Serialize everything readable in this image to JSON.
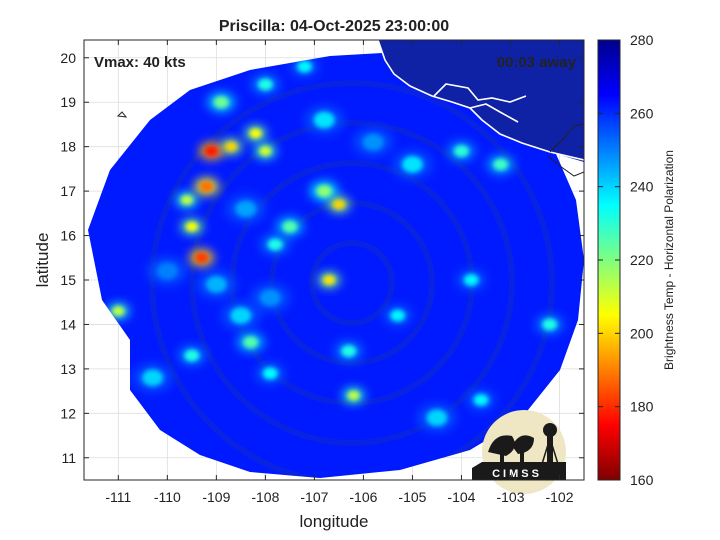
{
  "chart_data": {
    "type": "heatmap",
    "title": "Priscilla: 04-Oct-2025 23:00:00",
    "xlabel": "longitude",
    "ylabel": "latitude",
    "xlim": [
      -111.7,
      -101.5
    ],
    "ylim": [
      10.5,
      20.4
    ],
    "xticks": [
      "-111",
      "-110",
      "-109",
      "-108",
      "-107",
      "-106",
      "-105",
      "-104",
      "-103",
      "-102"
    ],
    "yticks": [
      "11",
      "12",
      "13",
      "14",
      "15",
      "16",
      "17",
      "18",
      "19",
      "20"
    ],
    "grid": true,
    "annotations": {
      "vmax": "Vmax: 40 kts",
      "away": "00:03 away"
    },
    "colorbar": {
      "label": "Brightness Temp - Horizontal Polarization",
      "range": [
        160,
        280
      ],
      "ticks": [
        "160",
        "180",
        "200",
        "220",
        "240",
        "260",
        "280"
      ],
      "colormap": "jet",
      "low_color": "#800000",
      "high_color": "#00008f"
    },
    "logo_text": "CIMSS",
    "swath_background_value": 262,
    "features": [
      {
        "lon": -109.1,
        "lat": 17.9,
        "value": 178
      },
      {
        "lon": -109.2,
        "lat": 17.1,
        "value": 188
      },
      {
        "lon": -109.3,
        "lat": 15.5,
        "value": 182
      },
      {
        "lon": -108.7,
        "lat": 18.0,
        "value": 200
      },
      {
        "lon": -108.2,
        "lat": 18.3,
        "value": 205
      },
      {
        "lon": -108.0,
        "lat": 17.9,
        "value": 210
      },
      {
        "lon": -109.5,
        "lat": 16.2,
        "value": 205
      },
      {
        "lon": -109.6,
        "lat": 16.8,
        "value": 212
      },
      {
        "lon": -108.9,
        "lat": 19.0,
        "value": 222
      },
      {
        "lon": -106.7,
        "lat": 15.0,
        "value": 202
      },
      {
        "lon": -106.5,
        "lat": 16.7,
        "value": 200
      },
      {
        "lon": -106.8,
        "lat": 17.0,
        "value": 218
      },
      {
        "lon": -106.2,
        "lat": 12.4,
        "value": 212
      },
      {
        "lon": -111.0,
        "lat": 14.3,
        "value": 212
      },
      {
        "lon": -107.5,
        "lat": 16.2,
        "value": 225
      },
      {
        "lon": -107.8,
        "lat": 15.8,
        "value": 232
      },
      {
        "lon": -108.3,
        "lat": 13.6,
        "value": 225
      },
      {
        "lon": -108.5,
        "lat": 14.2,
        "value": 240
      },
      {
        "lon": -104.0,
        "lat": 17.9,
        "value": 230
      },
      {
        "lon": -103.2,
        "lat": 17.6,
        "value": 228
      },
      {
        "lon": -105.0,
        "lat": 17.6,
        "value": 238
      },
      {
        "lon": -106.8,
        "lat": 18.6,
        "value": 238
      },
      {
        "lon": -109.5,
        "lat": 13.3,
        "value": 232
      },
      {
        "lon": -110.3,
        "lat": 12.8,
        "value": 240
      },
      {
        "lon": -107.9,
        "lat": 12.9,
        "value": 235
      },
      {
        "lon": -106.3,
        "lat": 13.4,
        "value": 232
      },
      {
        "lon": -105.3,
        "lat": 14.2,
        "value": 236
      },
      {
        "lon": -103.8,
        "lat": 15.0,
        "value": 236
      },
      {
        "lon": -102.2,
        "lat": 14.0,
        "value": 232
      },
      {
        "lon": -103.6,
        "lat": 12.3,
        "value": 236
      },
      {
        "lon": -104.5,
        "lat": 11.9,
        "value": 240
      },
      {
        "lon": -108.0,
        "lat": 19.4,
        "value": 232
      },
      {
        "lon": -107.2,
        "lat": 19.8,
        "value": 236
      },
      {
        "lon": -108.4,
        "lat": 16.6,
        "value": 246
      },
      {
        "lon": -107.9,
        "lat": 14.6,
        "value": 248
      },
      {
        "lon": -109.0,
        "lat": 14.9,
        "value": 244
      },
      {
        "lon": -110.0,
        "lat": 15.2,
        "value": 250
      },
      {
        "lon": -105.8,
        "lat": 18.1,
        "value": 248
      }
    ]
  }
}
